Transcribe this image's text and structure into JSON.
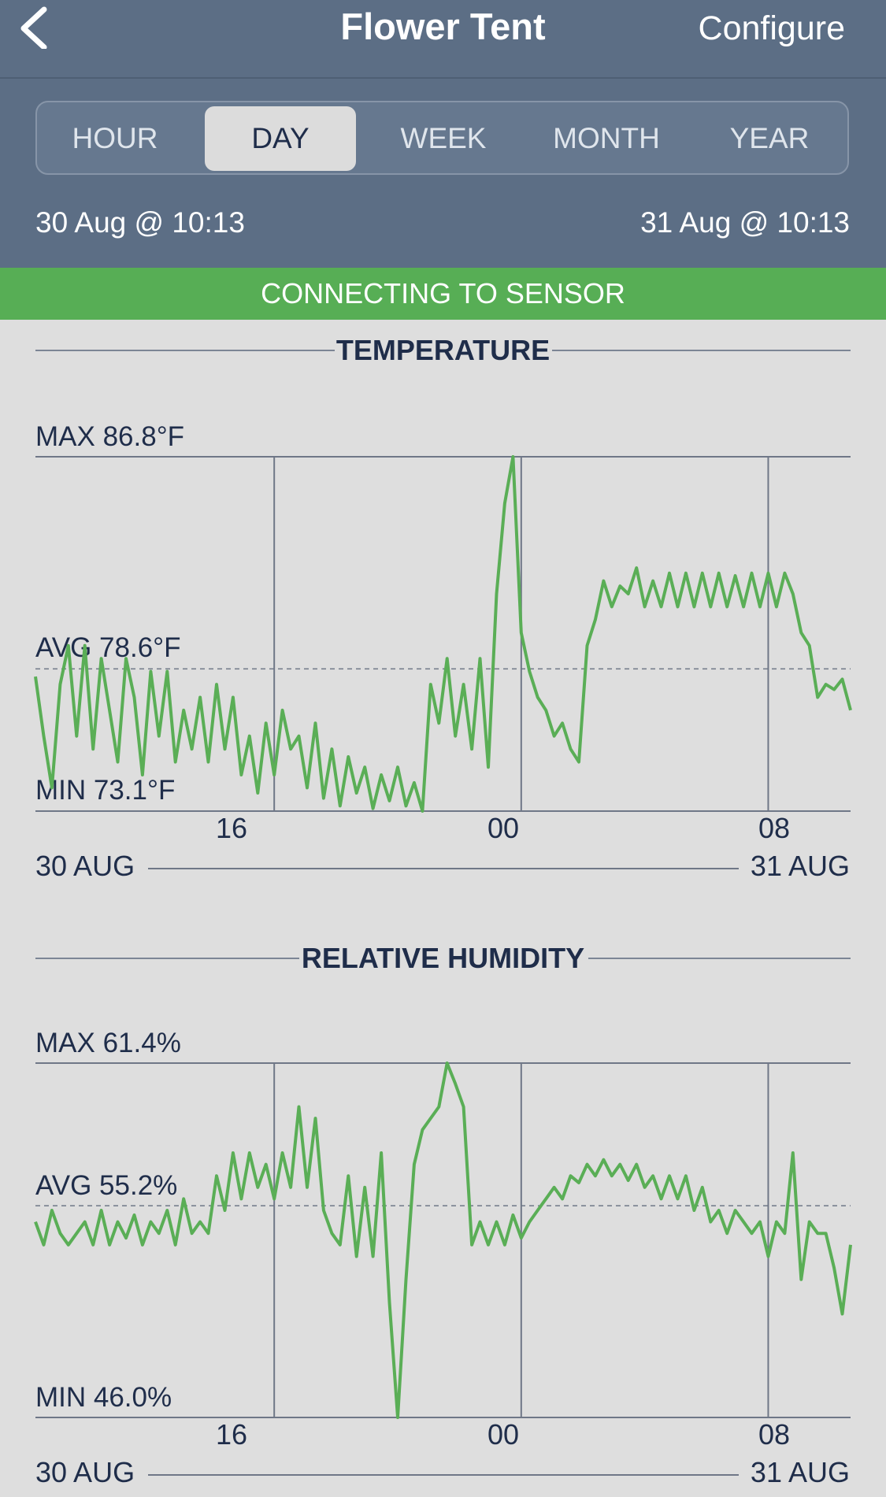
{
  "header": {
    "title": "Flower Tent",
    "configure_label": "Configure"
  },
  "range_tabs": {
    "items": [
      "HOUR",
      "DAY",
      "WEEK",
      "MONTH",
      "YEAR"
    ],
    "selected": "DAY"
  },
  "range": {
    "start": "30 Aug @ 10:13",
    "end": "31 Aug @ 10:13"
  },
  "status": "CONNECTING TO SENSOR",
  "colors": {
    "header_bg": "#5c6e85",
    "status_bar": "#57ae55",
    "series_line": "#5aae56",
    "text_dark": "#1f2d4a"
  },
  "temperature": {
    "title": "TEMPERATURE",
    "max_label": "MAX 86.8°F",
    "avg_label": "AVG 78.6°F",
    "min_label": "MIN 73.1°F",
    "tick_labels": [
      "16",
      "00",
      "08"
    ],
    "start_date": "30 AUG",
    "end_date": "31 AUG"
  },
  "humidity": {
    "title": "RELATIVE HUMIDITY",
    "max_label": "MAX 61.4%",
    "avg_label": "AVG 55.2%",
    "min_label": "MIN 46.0%",
    "tick_labels": [
      "16",
      "00",
      "08"
    ],
    "start_date": "30 AUG",
    "end_date": "31 AUG"
  },
  "chart_data": [
    {
      "type": "line",
      "title": "TEMPERATURE",
      "series": [
        {
          "values": [
            [
              0,
              78.3
            ],
            [
              0.25,
              76
            ],
            [
              0.5,
              74
            ],
            [
              0.75,
              78
            ],
            [
              1,
              79.5
            ],
            [
              1.25,
              76
            ],
            [
              1.5,
              79.5
            ],
            [
              1.75,
              75.5
            ],
            [
              2,
              79
            ],
            [
              2.25,
              77
            ],
            [
              2.5,
              75
            ],
            [
              2.75,
              79
            ],
            [
              3,
              77.5
            ],
            [
              3.25,
              74.5
            ],
            [
              3.5,
              78.5
            ],
            [
              3.75,
              76
            ],
            [
              4,
              78.5
            ],
            [
              4.25,
              75
            ],
            [
              4.5,
              77
            ],
            [
              4.75,
              75.5
            ],
            [
              5,
              77.5
            ],
            [
              5.25,
              75
            ],
            [
              5.5,
              78
            ],
            [
              5.75,
              75.5
            ],
            [
              6,
              77.5
            ],
            [
              6.25,
              74.5
            ],
            [
              6.5,
              76
            ],
            [
              6.75,
              73.8
            ],
            [
              7,
              76.5
            ],
            [
              7.25,
              74.5
            ],
            [
              7.5,
              77
            ],
            [
              7.75,
              75.5
            ],
            [
              8,
              76
            ],
            [
              8.25,
              74
            ],
            [
              8.5,
              76.5
            ],
            [
              8.75,
              73.6
            ],
            [
              9,
              75.5
            ],
            [
              9.25,
              73.3
            ],
            [
              9.5,
              75.2
            ],
            [
              9.75,
              73.8
            ],
            [
              10,
              74.8
            ],
            [
              10.25,
              73.2
            ],
            [
              10.5,
              74.5
            ],
            [
              10.75,
              73.5
            ],
            [
              11,
              74.8
            ],
            [
              11.25,
              73.3
            ],
            [
              11.5,
              74.2
            ],
            [
              11.75,
              73.1
            ],
            [
              12,
              78
            ],
            [
              12.25,
              76.5
            ],
            [
              12.5,
              79
            ],
            [
              12.75,
              76
            ],
            [
              13,
              78
            ],
            [
              13.25,
              75.5
            ],
            [
              13.5,
              79
            ],
            [
              13.75,
              74.8
            ],
            [
              14,
              81.5
            ],
            [
              14.25,
              85
            ],
            [
              14.5,
              86.8
            ],
            [
              14.75,
              80
            ],
            [
              15,
              78.5
            ],
            [
              15.25,
              77.5
            ],
            [
              15.5,
              77
            ],
            [
              15.75,
              76
            ],
            [
              16,
              76.5
            ],
            [
              16.25,
              75.5
            ],
            [
              16.5,
              75
            ],
            [
              16.75,
              79.5
            ],
            [
              17,
              80.5
            ],
            [
              17.25,
              82
            ],
            [
              17.5,
              81
            ],
            [
              17.75,
              81.8
            ],
            [
              18,
              81.5
            ],
            [
              18.25,
              82.5
            ],
            [
              18.5,
              81
            ],
            [
              18.75,
              82
            ],
            [
              19,
              81
            ],
            [
              19.25,
              82.3
            ],
            [
              19.5,
              81
            ],
            [
              19.75,
              82.3
            ],
            [
              20,
              81
            ],
            [
              20.25,
              82.3
            ],
            [
              20.5,
              81
            ],
            [
              20.75,
              82.3
            ],
            [
              21,
              81
            ],
            [
              21.25,
              82.2
            ],
            [
              21.5,
              81
            ],
            [
              21.75,
              82.3
            ],
            [
              22,
              81
            ],
            [
              22.25,
              82.3
            ],
            [
              22.5,
              81
            ],
            [
              22.75,
              82.3
            ],
            [
              23,
              81.5
            ],
            [
              23.25,
              80
            ],
            [
              23.5,
              79.5
            ],
            [
              23.75,
              77.5
            ],
            [
              24,
              78
            ],
            [
              24.25,
              77.8
            ],
            [
              24.5,
              78.2
            ],
            [
              24.75,
              77
            ]
          ]
        }
      ],
      "xlabel": "",
      "ylabel": "",
      "x_ticks": [
        "16",
        "00",
        "08"
      ],
      "ylim": [
        73.1,
        86.8
      ],
      "average": 78.6,
      "grid": true
    },
    {
      "type": "line",
      "title": "RELATIVE HUMIDITY",
      "series": [
        {
          "values": [
            [
              0,
              54.5
            ],
            [
              0.25,
              53.5
            ],
            [
              0.5,
              55
            ],
            [
              0.75,
              54
            ],
            [
              1,
              53.5
            ],
            [
              1.25,
              54
            ],
            [
              1.5,
              54.5
            ],
            [
              1.75,
              53.5
            ],
            [
              2,
              55
            ],
            [
              2.25,
              53.5
            ],
            [
              2.5,
              54.5
            ],
            [
              2.75,
              53.8
            ],
            [
              3,
              54.8
            ],
            [
              3.25,
              53.5
            ],
            [
              3.5,
              54.5
            ],
            [
              3.75,
              54
            ],
            [
              4,
              55
            ],
            [
              4.25,
              53.5
            ],
            [
              4.5,
              55.5
            ],
            [
              4.75,
              54
            ],
            [
              5,
              54.5
            ],
            [
              5.25,
              54
            ],
            [
              5.5,
              56.5
            ],
            [
              5.75,
              55
            ],
            [
              6,
              57.5
            ],
            [
              6.25,
              55.5
            ],
            [
              6.5,
              57.5
            ],
            [
              6.75,
              56
            ],
            [
              7,
              57
            ],
            [
              7.25,
              55.5
            ],
            [
              7.5,
              57.5
            ],
            [
              7.75,
              56
            ],
            [
              8,
              59.5
            ],
            [
              8.25,
              56
            ],
            [
              8.5,
              59
            ],
            [
              8.75,
              55
            ],
            [
              9,
              54
            ],
            [
              9.25,
              53.5
            ],
            [
              9.5,
              56.5
            ],
            [
              9.75,
              53
            ],
            [
              10,
              56
            ],
            [
              10.25,
              53
            ],
            [
              10.5,
              57.5
            ],
            [
              10.75,
              51
            ],
            [
              11,
              46
            ],
            [
              11.25,
              52
            ],
            [
              11.5,
              57
            ],
            [
              11.75,
              58.5
            ],
            [
              12,
              59
            ],
            [
              12.25,
              59.5
            ],
            [
              12.5,
              61.4
            ],
            [
              12.75,
              60.5
            ],
            [
              13,
              59.5
            ],
            [
              13.25,
              53.5
            ],
            [
              13.5,
              54.5
            ],
            [
              13.75,
              53.5
            ],
            [
              14,
              54.5
            ],
            [
              14.25,
              53.5
            ],
            [
              14.5,
              54.8
            ],
            [
              14.75,
              53.8
            ],
            [
              15,
              54.5
            ],
            [
              15.25,
              55
            ],
            [
              15.5,
              55.5
            ],
            [
              15.75,
              56
            ],
            [
              16,
              55.5
            ],
            [
              16.25,
              56.5
            ],
            [
              16.5,
              56.2
            ],
            [
              16.75,
              57
            ],
            [
              17,
              56.5
            ],
            [
              17.25,
              57.2
            ],
            [
              17.5,
              56.5
            ],
            [
              17.75,
              57
            ],
            [
              18,
              56.3
            ],
            [
              18.25,
              57
            ],
            [
              18.5,
              56
            ],
            [
              18.75,
              56.5
            ],
            [
              19,
              55.5
            ],
            [
              19.25,
              56.5
            ],
            [
              19.5,
              55.5
            ],
            [
              19.75,
              56.5
            ],
            [
              20,
              55
            ],
            [
              20.25,
              56
            ],
            [
              20.5,
              54.5
            ],
            [
              20.75,
              55
            ],
            [
              21,
              54
            ],
            [
              21.25,
              55
            ],
            [
              21.5,
              54.5
            ],
            [
              21.75,
              54
            ],
            [
              22,
              54.5
            ],
            [
              22.25,
              53
            ],
            [
              22.5,
              54.5
            ],
            [
              22.75,
              54
            ],
            [
              23,
              57.5
            ],
            [
              23.25,
              52
            ],
            [
              23.5,
              54.5
            ],
            [
              23.75,
              54
            ],
            [
              24,
              54
            ],
            [
              24.25,
              52.5
            ],
            [
              24.5,
              50.5
            ],
            [
              24.75,
              53.5
            ]
          ]
        }
      ],
      "xlabel": "",
      "ylabel": "",
      "x_ticks": [
        "16",
        "00",
        "08"
      ],
      "ylim": [
        46.0,
        61.4
      ],
      "average": 55.2,
      "grid": true
    }
  ]
}
